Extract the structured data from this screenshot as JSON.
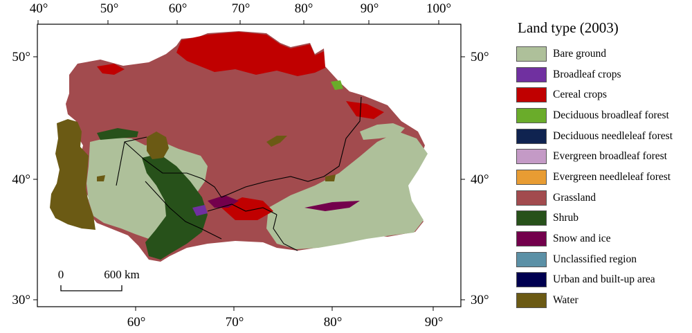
{
  "map": {
    "top_axis_labels": [
      "40°",
      "50°",
      "60°",
      "70°",
      "80°",
      "90°",
      "100°"
    ],
    "bottom_axis_labels": [
      "60°",
      "70°",
      "80°",
      "90°"
    ],
    "left_axis_labels": [
      "50°",
      "40°",
      "30°"
    ],
    "right_axis_labels": [
      "50°",
      "40°",
      "30°"
    ],
    "scale_bar": {
      "start": "0",
      "end": "600 km"
    }
  },
  "legend": {
    "title": "Land type (2003)",
    "items": [
      {
        "label": "Bare ground",
        "color": "#aec09a"
      },
      {
        "label": "Broadleaf crops",
        "color": "#7030a0"
      },
      {
        "label": "Cereal crops",
        "color": "#c00000"
      },
      {
        "label": "Deciduous broadleaf forest",
        "color": "#6aac2a"
      },
      {
        "label": "Deciduous needleleaf forest",
        "color": "#0f2350"
      },
      {
        "label": "Evergreen broadleaf forest",
        "color": "#c49ac6"
      },
      {
        "label": "Evergreen needleleaf forest",
        "color": "#e89c33"
      },
      {
        "label": "Grassland",
        "color": "#a24b4e"
      },
      {
        "label": "Shrub",
        "color": "#27511a"
      },
      {
        "label": "Snow and ice",
        "color": "#73004c"
      },
      {
        "label": "Unclassified region",
        "color": "#5b90a6"
      },
      {
        "label": "Urban and built-up area",
        "color": "#000050"
      },
      {
        "label": "Water",
        "color": "#6b5a14"
      }
    ]
  }
}
